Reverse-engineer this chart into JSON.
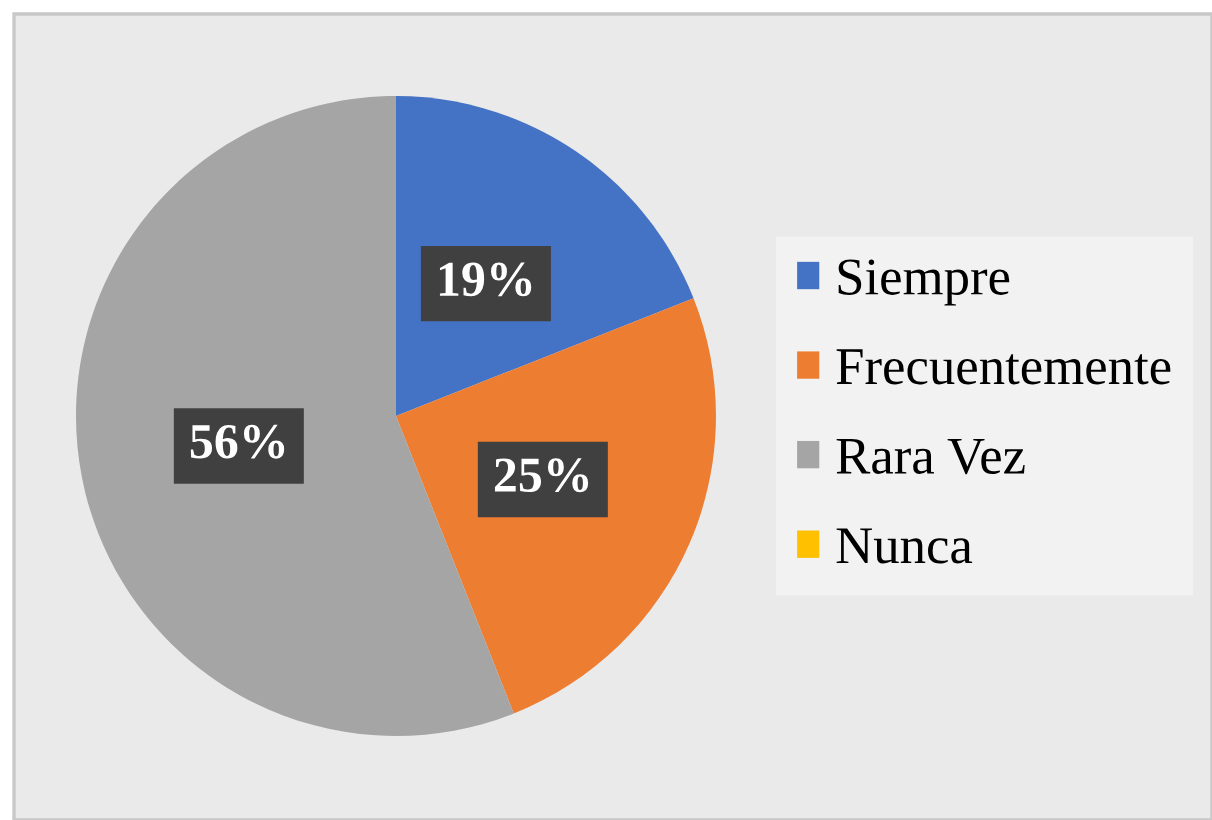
{
  "chart_data": {
    "type": "pie",
    "categories": [
      "Siempre",
      "Frecuentemente",
      "Rara Vez",
      "Nunca"
    ],
    "values": [
      19,
      25,
      56,
      0
    ],
    "colors": [
      "#4472c4",
      "#ed7d31",
      "#a5a5a5",
      "#ffc000"
    ],
    "value_labels": [
      "19%",
      "25%",
      "56%",
      null
    ],
    "legend": "right"
  }
}
